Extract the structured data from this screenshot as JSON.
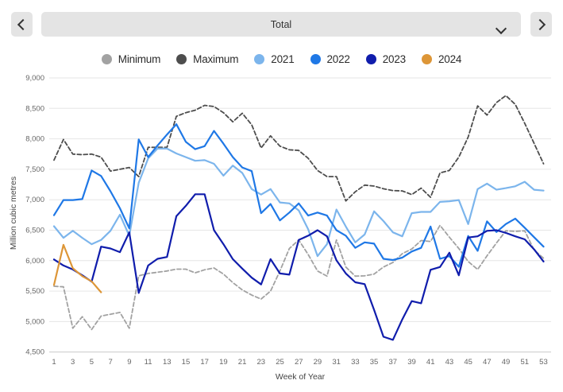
{
  "toolbar": {
    "dropdown_value": "Total"
  },
  "legend": [
    {
      "label": "Minimum",
      "color": "#a2a2a2"
    },
    {
      "label": "Maximum",
      "color": "#4d4d4d"
    },
    {
      "label": "2021",
      "color": "#7cb5ec"
    },
    {
      "label": "2022",
      "color": "#1f78e6"
    },
    {
      "label": "2023",
      "color": "#101dac"
    },
    {
      "label": "2024",
      "color": "#dd9637"
    }
  ],
  "chart_data": {
    "type": "line",
    "xlabel": "Week of Year",
    "ylabel": "Million cubic metres",
    "xlim": [
      1,
      53
    ],
    "ylim": [
      4500,
      9000
    ],
    "grid": "horizontal",
    "x_ticks": [
      1,
      3,
      5,
      7,
      9,
      11,
      13,
      15,
      17,
      19,
      21,
      23,
      25,
      27,
      29,
      31,
      33,
      35,
      37,
      39,
      41,
      43,
      45,
      47,
      49,
      51,
      53
    ],
    "y_ticks": [
      {
        "v": 4500,
        "label": "4,500"
      },
      {
        "v": 5000,
        "label": "5,000"
      },
      {
        "v": 5500,
        "label": "5,500"
      },
      {
        "v": 6000,
        "label": "6,000"
      },
      {
        "v": 6500,
        "label": "6,500"
      },
      {
        "v": 7000,
        "label": "7,000"
      },
      {
        "v": 7500,
        "label": "7,500"
      },
      {
        "v": 8000,
        "label": "8,000"
      },
      {
        "v": 8500,
        "label": "8,500"
      },
      {
        "v": 9000,
        "label": "9,000"
      }
    ],
    "x": [
      1,
      2,
      3,
      4,
      5,
      6,
      7,
      8,
      9,
      10,
      11,
      12,
      13,
      14,
      15,
      16,
      17,
      18,
      19,
      20,
      21,
      22,
      23,
      24,
      25,
      26,
      27,
      28,
      29,
      30,
      31,
      32,
      33,
      34,
      35,
      36,
      37,
      38,
      39,
      40,
      41,
      42,
      43,
      44,
      45,
      46,
      47,
      48,
      49,
      50,
      51,
      52,
      53
    ],
    "series": [
      {
        "name": "Minimum",
        "color": "#a2a2a2",
        "dashed": true,
        "values": [
          5580,
          5570,
          4890,
          5080,
          4870,
          5090,
          5120,
          5150,
          4890,
          5750,
          5790,
          5810,
          5830,
          5860,
          5860,
          5800,
          5850,
          5880,
          5780,
          5640,
          5520,
          5435,
          5370,
          5500,
          5830,
          6200,
          6340,
          6100,
          5830,
          5745,
          6340,
          5895,
          5745,
          5750,
          5780,
          5895,
          5970,
          6115,
          6190,
          6330,
          6315,
          6580,
          6385,
          6200,
          5985,
          5855,
          6080,
          6290,
          6490,
          6480,
          6490,
          6175,
          6040
        ]
      },
      {
        "name": "Maximum",
        "color": "#4d4d4d",
        "dashed": true,
        "values": [
          7650,
          7990,
          7750,
          7740,
          7750,
          7700,
          7470,
          7500,
          7530,
          7380,
          7860,
          7860,
          7860,
          8370,
          8430,
          8470,
          8550,
          8530,
          8430,
          8280,
          8420,
          8230,
          7850,
          8050,
          7880,
          7820,
          7810,
          7680,
          7480,
          7380,
          7380,
          6980,
          7130,
          7240,
          7225,
          7180,
          7150,
          7145,
          7085,
          7190,
          7040,
          7440,
          7480,
          7700,
          8030,
          8540,
          8390,
          8595,
          8710,
          8565,
          8255,
          7925,
          7590
        ]
      },
      {
        "name": "2021",
        "color": "#7cb5ec",
        "dashed": false,
        "values": [
          6565,
          6375,
          6490,
          6375,
          6270,
          6340,
          6490,
          6755,
          6410,
          7280,
          7680,
          7840,
          7840,
          7760,
          7700,
          7640,
          7650,
          7590,
          7395,
          7560,
          7440,
          7175,
          7085,
          7175,
          6955,
          6940,
          6825,
          6515,
          6075,
          6270,
          6840,
          6560,
          6300,
          6430,
          6810,
          6650,
          6465,
          6400,
          6780,
          6800,
          6800,
          6965,
          6975,
          6995,
          6600,
          7175,
          7265,
          7165,
          7190,
          7220,
          7295,
          7165,
          7150
        ]
      },
      {
        "name": "2022",
        "color": "#1f78e6",
        "dashed": false,
        "values": [
          6745,
          6995,
          6995,
          7010,
          7480,
          7390,
          7140,
          6860,
          6530,
          7990,
          7700,
          7890,
          8070,
          8240,
          7950,
          7830,
          7880,
          8130,
          7920,
          7700,
          7530,
          7470,
          6780,
          6930,
          6660,
          6790,
          6940,
          6740,
          6790,
          6740,
          6500,
          6410,
          6210,
          6300,
          6280,
          6030,
          6010,
          6050,
          6150,
          6210,
          6560,
          6030,
          6075,
          5900,
          6405,
          6160,
          6645,
          6470,
          6600,
          6690,
          6540,
          6385,
          6230
        ]
      },
      {
        "name": "2023",
        "color": "#101dac",
        "dashed": false,
        "values": [
          6020,
          5920,
          5855,
          5760,
          5655,
          6230,
          6200,
          6140,
          6465,
          5470,
          5920,
          6030,
          6060,
          6730,
          6900,
          7090,
          7090,
          6500,
          6270,
          6025,
          5870,
          5720,
          5610,
          6025,
          5790,
          5770,
          6340,
          6410,
          6500,
          6400,
          6005,
          5790,
          5645,
          5615,
          5190,
          4750,
          4700,
          5035,
          5335,
          5300,
          5850,
          5895,
          6130,
          5760,
          6380,
          6400,
          6490,
          6500,
          6455,
          6400,
          6350,
          6185,
          5985
        ]
      },
      {
        "name": "2024",
        "color": "#dd9637",
        "dashed": false,
        "values": [
          5600,
          6260,
          5875,
          5745,
          5660,
          5480
        ]
      }
    ]
  }
}
